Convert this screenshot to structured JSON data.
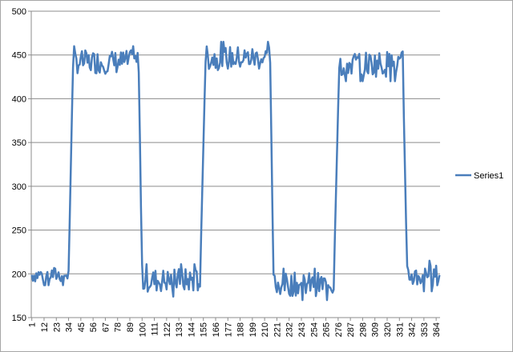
{
  "chart_data": {
    "type": "line",
    "title": "",
    "xlabel": "",
    "ylabel": "",
    "ylim": [
      150,
      500
    ],
    "yticks": [
      150,
      200,
      250,
      300,
      350,
      400,
      450,
      500
    ],
    "x_count": 367,
    "x_tick_labels": [
      "1",
      "12",
      "23",
      "34",
      "45",
      "56",
      "67",
      "78",
      "89",
      "100",
      "111",
      "122",
      "133",
      "144",
      "155",
      "166",
      "177",
      "188",
      "199",
      "210",
      "221",
      "232",
      "243",
      "254",
      "265",
      "276",
      "287",
      "298",
      "309",
      "320",
      "331",
      "342",
      "353",
      "364"
    ],
    "grid": "horizontal",
    "legend": "right",
    "series": [
      {
        "name": "Series1",
        "color": "#4a7ebb",
        "segments": [
          {
            "x_from": 1,
            "x_to": 34,
            "low": 187,
            "high": 211
          },
          {
            "x_from": 38,
            "x_to": 97,
            "low": 424,
            "high": 460
          },
          {
            "x_from": 100,
            "x_to": 152,
            "low": 174,
            "high": 211
          },
          {
            "x_from": 157,
            "x_to": 215,
            "low": 428,
            "high": 465
          },
          {
            "x_from": 218,
            "x_to": 272,
            "low": 170,
            "high": 206
          },
          {
            "x_from": 277,
            "x_to": 334,
            "low": 420,
            "high": 460
          },
          {
            "x_from": 338,
            "x_to": 367,
            "low": 180,
            "high": 215
          }
        ]
      }
    ]
  }
}
